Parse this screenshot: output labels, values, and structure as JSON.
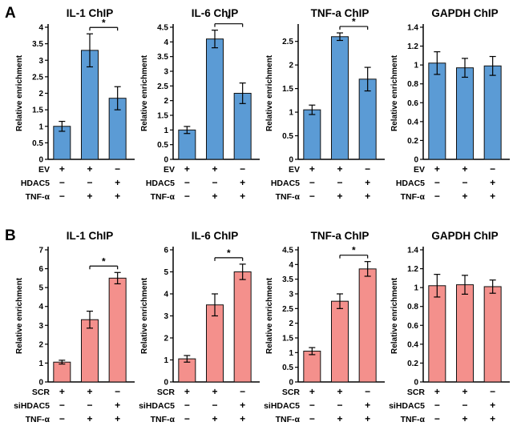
{
  "figure_title": "ChIP enrichment panels",
  "chart_data": {
    "type": "bar",
    "panels": [
      {
        "label": "A",
        "bar_color": "#5B9BD5",
        "bar_edge_color": "#111111",
        "ylabel": "Relative enrichment",
        "row_labels": [
          "EV",
          "HDAC5",
          "TNF-α"
        ],
        "conditions": [
          [
            "+",
            "+",
            "−"
          ],
          [
            "−",
            "−",
            "+"
          ],
          [
            "−",
            "+",
            "+"
          ]
        ],
        "charts": [
          {
            "title": "IL-1 ChIP",
            "ylim": [
              0,
              4
            ],
            "ystep": 0.5,
            "values": [
              1.0,
              3.3,
              1.85
            ],
            "errors": [
              0.15,
              0.5,
              0.35
            ],
            "sig": {
              "from": 1,
              "to": 2,
              "label": "*"
            }
          },
          {
            "title": "IL-6 ChIP",
            "ylim": [
              0,
              4.5
            ],
            "ystep": 0.5,
            "values": [
              1.0,
              4.1,
              2.25
            ],
            "errors": [
              0.12,
              0.3,
              0.35
            ],
            "sig": {
              "from": 1,
              "to": 2,
              "label": "*"
            }
          },
          {
            "title": "TNF-a ChIP",
            "ylim": [
              0,
              2.8
            ],
            "ystep": 0.5,
            "values": [
              1.05,
              2.6,
              1.7
            ],
            "errors": [
              0.1,
              0.08,
              0.25
            ],
            "sig": {
              "from": 1,
              "to": 2,
              "label": "*"
            }
          },
          {
            "title": "GAPDH ChIP",
            "ylim": [
              0,
              1.4
            ],
            "ystep": 0.2,
            "values": [
              1.02,
              0.97,
              0.99
            ],
            "errors": [
              0.12,
              0.1,
              0.1
            ],
            "sig": null
          }
        ]
      },
      {
        "label": "B",
        "bar_color": "#F4908C",
        "bar_edge_color": "#111111",
        "ylabel": "Relative enrichment",
        "row_labels": [
          "SCR",
          "siHDAC5",
          "TNF-α"
        ],
        "conditions": [
          [
            "+",
            "+",
            "−"
          ],
          [
            "−",
            "−",
            "+"
          ],
          [
            "−",
            "+",
            "+"
          ]
        ],
        "charts": [
          {
            "title": "IL-1 ChIP",
            "ylim": [
              0,
              7
            ],
            "ystep": 1,
            "values": [
              1.05,
              3.3,
              5.5
            ],
            "errors": [
              0.1,
              0.45,
              0.3
            ],
            "sig": {
              "from": 1,
              "to": 2,
              "label": "*"
            }
          },
          {
            "title": "IL-6 ChIP",
            "ylim": [
              0,
              6
            ],
            "ystep": 1,
            "values": [
              1.05,
              3.5,
              5.0
            ],
            "errors": [
              0.15,
              0.5,
              0.35
            ],
            "sig": {
              "from": 1,
              "to": 2,
              "label": "*"
            }
          },
          {
            "title": "TNF-a ChIP",
            "ylim": [
              0,
              4.5
            ],
            "ystep": 0.5,
            "values": [
              1.05,
              2.75,
              3.85
            ],
            "errors": [
              0.12,
              0.25,
              0.25
            ],
            "sig": {
              "from": 1,
              "to": 2,
              "label": "*"
            }
          },
          {
            "title": "GAPDH ChIP",
            "ylim": [
              0,
              1.4
            ],
            "ystep": 0.2,
            "values": [
              1.02,
              1.03,
              1.01
            ],
            "errors": [
              0.12,
              0.1,
              0.07
            ],
            "sig": null
          }
        ]
      }
    ]
  }
}
